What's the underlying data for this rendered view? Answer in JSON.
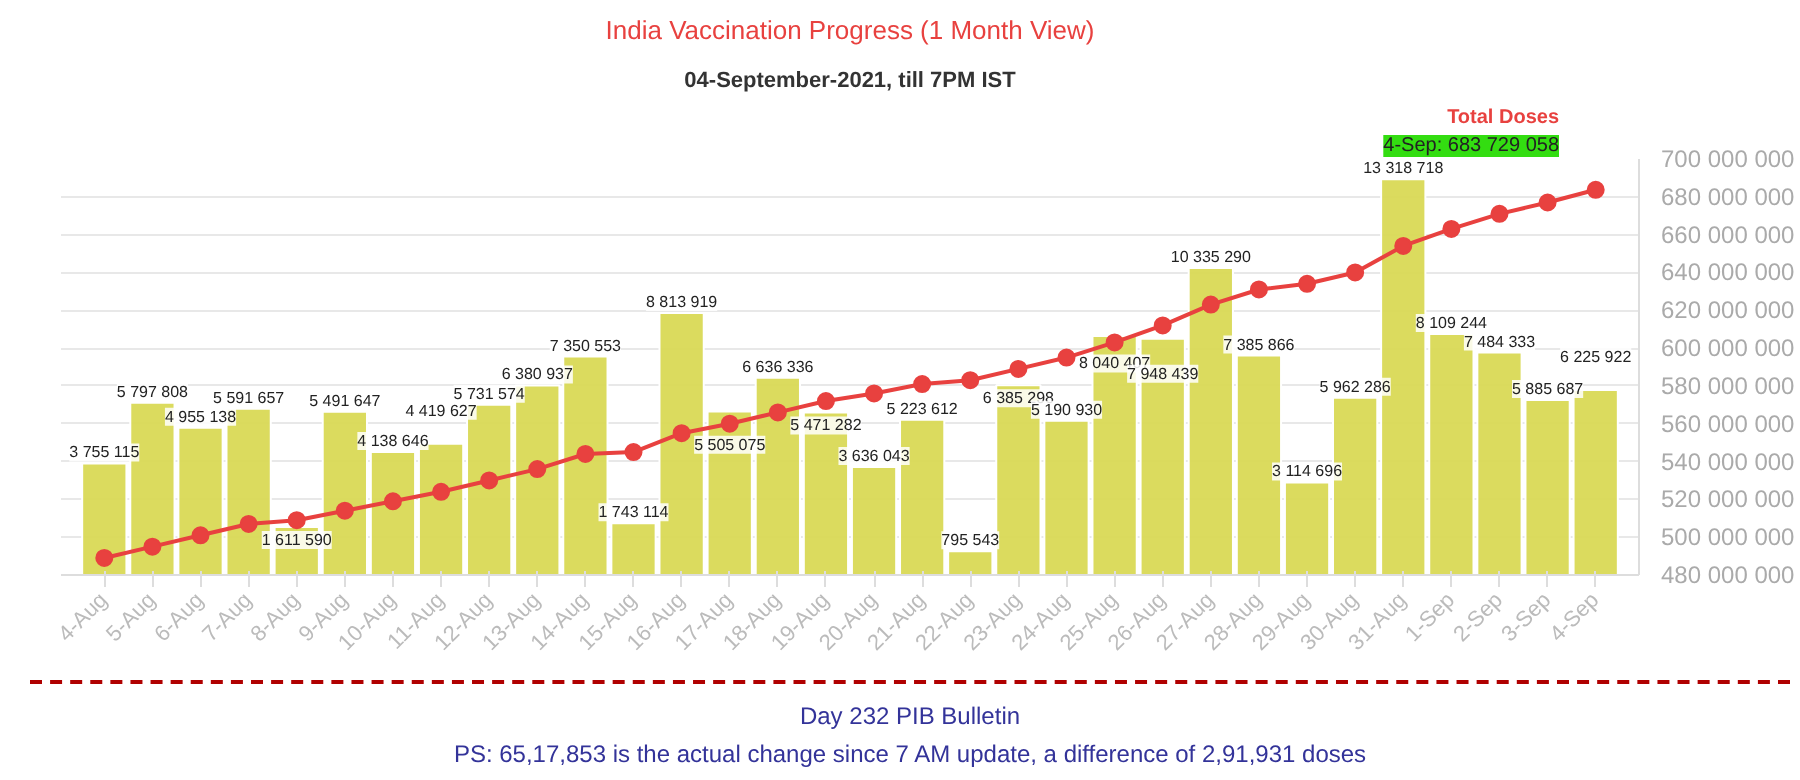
{
  "chart_data": {
    "type": "bar",
    "title": "India Vaccination Progress (1 Month View)",
    "subtitle": "04-September-2021, till 7PM IST",
    "categories": [
      "4-Aug",
      "5-Aug",
      "6-Aug",
      "7-Aug",
      "8-Aug",
      "9-Aug",
      "10-Aug",
      "11-Aug",
      "12-Aug",
      "13-Aug",
      "14-Aug",
      "15-Aug",
      "16-Aug",
      "17-Aug",
      "18-Aug",
      "19-Aug",
      "20-Aug",
      "21-Aug",
      "22-Aug",
      "23-Aug",
      "24-Aug",
      "25-Aug",
      "26-Aug",
      "27-Aug",
      "28-Aug",
      "29-Aug",
      "30-Aug",
      "31-Aug",
      "1-Sep",
      "2-Sep",
      "3-Sep",
      "4-Sep"
    ],
    "series": [
      {
        "color": "#d9d955",
        "values": [
          3755115,
          5797808,
          4955138,
          5591657,
          1611590,
          5491647,
          4138646,
          4419627,
          5731574,
          6380937,
          7350553,
          1743114,
          8813919,
          5505075,
          6636336,
          5471282,
          3636043,
          5223612,
          795543,
          6385298,
          5190930,
          8040407,
          7948439,
          10335290,
          7385866,
          3114696,
          5962286,
          13318718,
          8109244,
          7484333,
          5885687,
          6225922
        ],
        "value_labels": [
          "3 755 115",
          "5 797 808",
          "4 955 138",
          "5 591 657",
          "1 611 590",
          "5 491 647",
          "4 138 646",
          "4 419 627",
          "5 731 574",
          "6 380 937",
          "7 350 553",
          "1 743 114",
          "8 813 919",
          "5 505 075",
          "6 636 336",
          "5 471 282",
          "3 636 043",
          "5 223 612",
          "795 543",
          "6 385 298",
          "5 190 930",
          "8 040 407",
          "7 948 439",
          "10 335 290",
          "7 385 866",
          "3 114 696",
          "5 962 286",
          "13 318 718",
          "8 109 244",
          "7 484 333",
          "5 885 687",
          "6 225 922"
        ]
      },
      {
        "type": "line",
        "name": "Total Doses",
        "axis": "y2",
        "color": "#e8413f",
        "values": [
          489000000,
          495000000,
          501000000,
          507000000,
          509000000,
          514000000,
          519000000,
          524000000,
          530000000,
          536000000,
          544000000,
          545000000,
          555000000,
          560000000,
          566000000,
          572000000,
          576000000,
          581000000,
          583000000,
          589000000,
          595000000,
          603000000,
          612000000,
          623000000,
          631000000,
          634000000,
          640000000,
          654000000,
          663000000,
          671000000,
          677000000,
          683729058
        ]
      }
    ],
    "ylim": [
      0,
      14000000
    ],
    "y2lim": [
      480000000,
      700000000
    ],
    "y2ticks": [
      {
        "value": 480000000,
        "label": "480 000 000"
      },
      {
        "value": 500000000,
        "label": "500 000 000"
      },
      {
        "value": 520000000,
        "label": "520 000 000"
      },
      {
        "value": 540000000,
        "label": "540 000 000"
      },
      {
        "value": 560000000,
        "label": "560 000 000"
      },
      {
        "value": 580000000,
        "label": "580 000 000"
      },
      {
        "value": 600000000,
        "label": "600 000 000"
      },
      {
        "value": 620000000,
        "label": "620 000 000"
      },
      {
        "value": 640000000,
        "label": "640 000 000"
      },
      {
        "value": 660000000,
        "label": "660 000 000"
      },
      {
        "value": 680000000,
        "label": "680 000 000"
      },
      {
        "value": 700000000,
        "label": "700 000 000"
      }
    ],
    "grid": "y",
    "marker": "circle",
    "annotations": [
      "4-Sep: 683 729 058",
      "Day 232 PIB Bulletin",
      "PS: 65,17,853 is the actual change since 7 AM update, a difference of 2,91,931 doses"
    ]
  }
}
